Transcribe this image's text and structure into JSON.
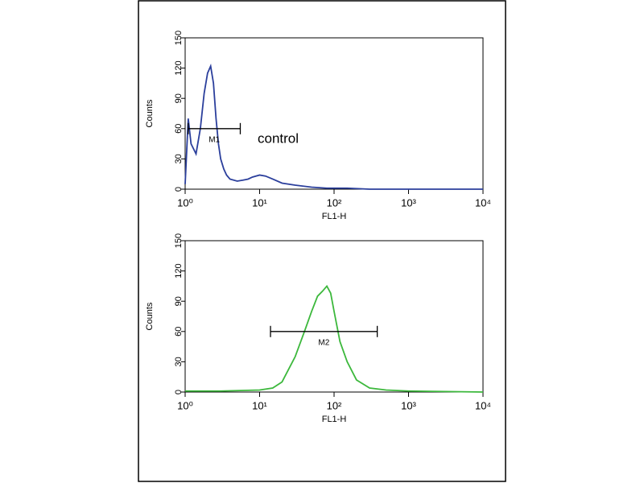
{
  "chart_data": [
    {
      "type": "line",
      "xscale": "log",
      "x_label": "FL1-H",
      "y_label": "Counts",
      "annotation": "control",
      "xlim": [
        1,
        10000
      ],
      "xticks": [
        {
          "value": 1,
          "label": "10⁰"
        },
        {
          "value": 10,
          "label": "10¹"
        },
        {
          "value": 100,
          "label": "10²"
        },
        {
          "value": 1000,
          "label": "10³"
        },
        {
          "value": 10000,
          "label": "10⁴"
        }
      ],
      "ylim": [
        0,
        150
      ],
      "yticks": [
        0,
        30,
        60,
        90,
        120,
        150
      ],
      "x": [
        1,
        1.1,
        1.2,
        1.4,
        1.6,
        1.8,
        2.0,
        2.2,
        2.4,
        2.6,
        2.8,
        3.0,
        3.3,
        3.6,
        4,
        5,
        6,
        7,
        8,
        10,
        12,
        15,
        20,
        30,
        50,
        80,
        100,
        150,
        300,
        1000,
        10000
      ],
      "series": [
        {
          "color": "#2b3f9c",
          "values": [
            5,
            70,
            45,
            35,
            60,
            95,
            115,
            122,
            105,
            70,
            45,
            30,
            20,
            14,
            10,
            8,
            9,
            10,
            12,
            14,
            13,
            10,
            6,
            4,
            2,
            1,
            1,
            1,
            0,
            0,
            0
          ]
        }
      ],
      "gate": {
        "label": "M1",
        "x": [
          1.1,
          5.5
        ],
        "y": 60
      }
    },
    {
      "type": "line",
      "xscale": "log",
      "x_label": "FL1-H",
      "y_label": "Counts",
      "xlim": [
        1,
        10000
      ],
      "xticks": [
        {
          "value": 1,
          "label": "10⁰"
        },
        {
          "value": 10,
          "label": "10¹"
        },
        {
          "value": 100,
          "label": "10²"
        },
        {
          "value": 1000,
          "label": "10³"
        },
        {
          "value": 10000,
          "label": "10⁴"
        }
      ],
      "ylim": [
        0,
        150
      ],
      "yticks": [
        0,
        30,
        60,
        90,
        120,
        150
      ],
      "x": [
        1,
        3,
        10,
        15,
        20,
        30,
        40,
        50,
        60,
        70,
        80,
        90,
        100,
        120,
        150,
        200,
        300,
        500,
        1000,
        10000
      ],
      "series": [
        {
          "color": "#3cb83c",
          "values": [
            1,
            1,
            2,
            4,
            10,
            35,
            60,
            80,
            95,
            100,
            105,
            98,
            80,
            50,
            30,
            12,
            4,
            2,
            1,
            0
          ]
        }
      ],
      "gate": {
        "label": "M2",
        "x": [
          14,
          380
        ],
        "y": 60
      }
    }
  ]
}
